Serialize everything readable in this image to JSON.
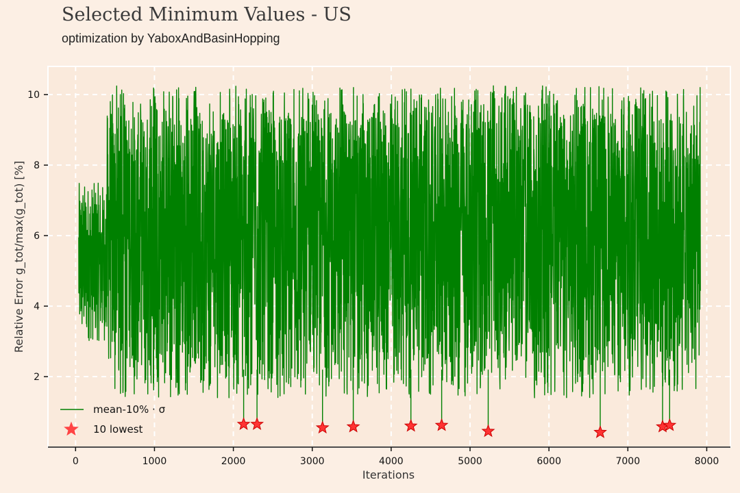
{
  "header": {
    "title": "Selected Minimum Values - US",
    "subtitle": "optimization by YaboxAndBasinHopping"
  },
  "chart_data": {
    "type": "line",
    "title": "Selected Minimum Values - US",
    "subtitle": "optimization by YaboxAndBasinHopping",
    "xlabel": "Iterations",
    "ylabel": "Relative Error g_tot/max(g_tot) [%]",
    "xlim": [
      -350,
      8300
    ],
    "ylim": [
      0,
      10.8
    ],
    "xticks": [
      0,
      1000,
      2000,
      3000,
      4000,
      5000,
      6000,
      7000,
      8000
    ],
    "yticks": [
      2,
      4,
      6,
      8,
      10
    ],
    "grid": true,
    "legend_position": "lower-left",
    "colors": {
      "line": "#008000",
      "marker": "#ff3333",
      "marker_edge": "#cc0000",
      "plot_bg": "#faeadc",
      "grid": "#ffffff"
    },
    "series": [
      {
        "name": "mean-10% · σ",
        "kind": "line",
        "x_range": [
          40,
          7920
        ],
        "value_range": [
          0.8,
          10.25
        ],
        "description_values": {
          "typical_low": 2.2,
          "typical_high": 9.5
        }
      },
      {
        "name": "10 lowest",
        "kind": "scatter",
        "marker": "star",
        "x": [
          2130,
          2300,
          3130,
          3520,
          4250,
          4640,
          5230,
          6650,
          7440,
          7530
        ],
        "y": [
          0.65,
          0.65,
          0.55,
          0.58,
          0.6,
          0.62,
          0.45,
          0.42,
          0.58,
          0.62
        ]
      }
    ]
  }
}
